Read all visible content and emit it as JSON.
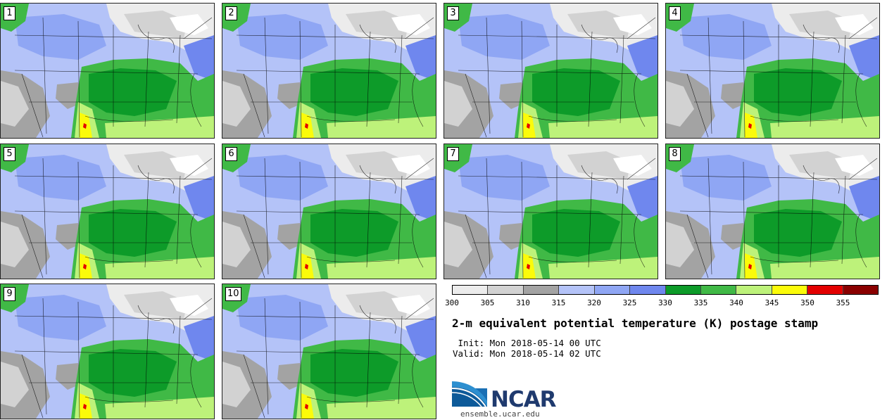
{
  "figure": {
    "title": "2-m equivalent potential temperature (K) postage stamp",
    "init_line": " Init: Mon 2018-05-14 00 UTC",
    "valid_line": "Valid: Mon 2018-05-14 02 UTC",
    "logo_text": "NCAR",
    "site": "ensemble.ucar.edu"
  },
  "members": [
    "1",
    "2",
    "3",
    "4",
    "5",
    "6",
    "7",
    "8",
    "9",
    "10"
  ],
  "colorbar": {
    "ticks": [
      "300",
      "305",
      "310",
      "315",
      "320",
      "325",
      "330",
      "335",
      "340",
      "345",
      "350",
      "355"
    ],
    "colors": [
      "#ececec",
      "#d2d2d2",
      "#a3a3a3",
      "#b4c3f8",
      "#8fa6f4",
      "#6f87ee",
      "#0d9b29",
      "#40b946",
      "#bdf27a",
      "#fbfb0a",
      "#e30000",
      "#8a0000"
    ]
  },
  "colors": {
    "ocean": "#b4c3f8",
    "background": "#ffffff",
    "panel_border": "#222222"
  }
}
